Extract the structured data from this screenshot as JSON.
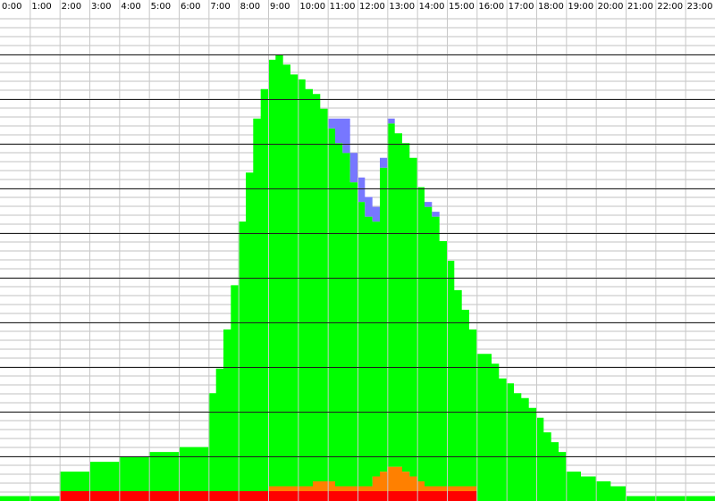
{
  "chart_data": {
    "type": "area",
    "title": "",
    "xlabel": "",
    "ylabel": "",
    "x_tick_labels": [
      "0:00",
      "1:00",
      "2:00",
      "3:00",
      "4:00",
      "5:00",
      "6:00",
      "7:00",
      "8:00",
      "9:00",
      "10:00",
      "11:00",
      "12:00",
      "13:00",
      "14:00",
      "15:00",
      "16:00",
      "17:00",
      "18:00",
      "19:00",
      "20:00",
      "21:00",
      "22:00",
      "23:00"
    ],
    "xlim": [
      0,
      24
    ],
    "ylim": [
      0,
      100
    ],
    "grid": true,
    "stacked": true,
    "legend": "none",
    "x": [
      0,
      0.5,
      1,
      1.5,
      2,
      2.5,
      3,
      3.5,
      4,
      4.5,
      5,
      5.5,
      6,
      6.5,
      7,
      7.25,
      7.5,
      7.75,
      8,
      8.25,
      8.5,
      8.75,
      9,
      9.25,
      9.5,
      9.75,
      10,
      10.25,
      10.5,
      10.75,
      11,
      11.25,
      11.5,
      11.75,
      12,
      12.25,
      12.5,
      12.75,
      13,
      13.25,
      13.5,
      13.75,
      14,
      14.25,
      14.5,
      14.75,
      15,
      15.25,
      15.5,
      15.75,
      16,
      16.25,
      16.5,
      16.75,
      17,
      17.25,
      17.5,
      17.75,
      18,
      18.25,
      18.5,
      18.75,
      19,
      19.5,
      20,
      20.5,
      21,
      21.5,
      22,
      22.5,
      23,
      23.5,
      23.99
    ],
    "series": [
      {
        "color": "#ff0000",
        "values": [
          0,
          0,
          0,
          0,
          2,
          2,
          2,
          2,
          2,
          2,
          2,
          2,
          2,
          2,
          2,
          2,
          2,
          2,
          2,
          2,
          2,
          2,
          2,
          2,
          2,
          2,
          2,
          2,
          2,
          2,
          2,
          2,
          2,
          2,
          2,
          2,
          2,
          2,
          2,
          2,
          2,
          2,
          2,
          2,
          2,
          2,
          2,
          2,
          2,
          2,
          0,
          0,
          0,
          0,
          0,
          0,
          0,
          0,
          0,
          0,
          0,
          0,
          0,
          0,
          0,
          0,
          0,
          0,
          0,
          0,
          0,
          0,
          0
        ]
      },
      {
        "color": "#ff8000",
        "values": [
          0,
          0,
          0,
          0,
          0,
          0,
          0,
          0,
          0,
          0,
          0,
          0,
          0,
          0,
          0,
          0,
          0,
          0,
          0,
          0,
          0,
          0,
          1,
          1,
          1,
          1,
          1,
          1,
          2,
          2,
          2,
          1,
          1,
          1,
          1,
          1,
          3,
          4,
          5,
          5,
          4,
          3,
          2,
          1,
          1,
          1,
          1,
          1,
          1,
          1,
          0,
          0,
          0,
          0,
          0,
          0,
          0,
          0,
          0,
          0,
          0,
          0,
          0,
          0,
          0,
          0,
          0,
          0,
          0,
          0,
          0,
          0,
          0
        ]
      },
      {
        "color": "#00ff00",
        "values": [
          1,
          1,
          1,
          1,
          4,
          4,
          6,
          6,
          7,
          7,
          8,
          8,
          9,
          9,
          20,
          25,
          33,
          42,
          55,
          65,
          76,
          82,
          87,
          88,
          86,
          84,
          83,
          81,
          79,
          76,
          72,
          70,
          68,
          62,
          58,
          55,
          52,
          62,
          70,
          68,
          67,
          65,
          60,
          57,
          55,
          50,
          46,
          40,
          36,
          32,
          30,
          30,
          28,
          25,
          24,
          22,
          21,
          19,
          17,
          14,
          12,
          10,
          6,
          5,
          4,
          3,
          1,
          1,
          1,
          1,
          1,
          1,
          1
        ]
      },
      {
        "color": "#7777ff",
        "values": [
          0,
          0,
          0,
          0,
          0,
          0,
          0,
          0,
          0,
          0,
          0,
          0,
          0,
          0,
          0,
          0,
          0,
          0,
          0,
          0,
          0,
          0,
          0,
          0,
          0,
          0,
          0,
          0,
          0,
          0,
          2,
          5,
          7,
          6,
          5,
          4,
          3,
          2,
          1,
          0,
          0,
          0,
          0,
          1,
          1,
          0,
          0,
          0,
          0,
          0,
          0,
          0,
          0,
          0,
          0,
          0,
          0,
          0,
          0,
          0,
          0,
          0,
          0,
          0,
          0,
          0,
          0,
          0,
          0,
          0,
          0,
          0,
          0
        ]
      }
    ]
  }
}
